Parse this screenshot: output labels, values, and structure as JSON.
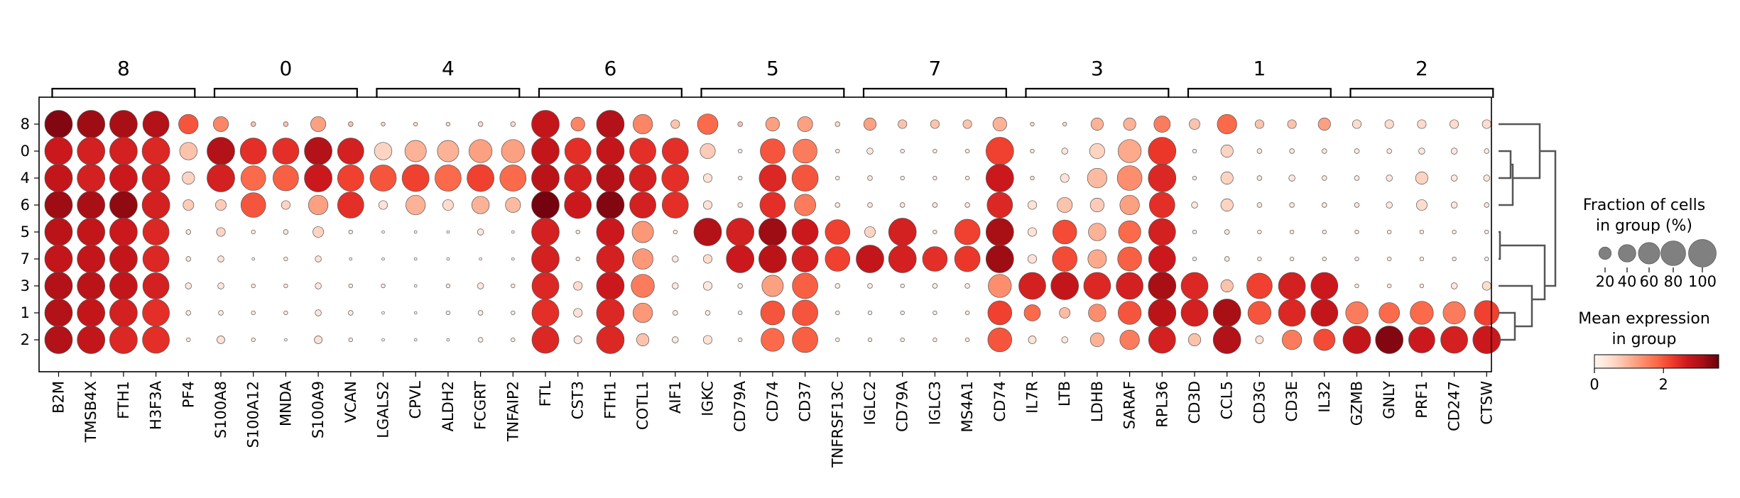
{
  "chart_data": {
    "type": "dotplot",
    "rows": [
      "8",
      "0",
      "4",
      "6",
      "5",
      "7",
      "3",
      "1",
      "2"
    ],
    "groups": [
      {
        "label": "8",
        "genes": [
          "B2M",
          "TMSB4X",
          "FTH1",
          "H3F3A",
          "PF4"
        ]
      },
      {
        "label": "0",
        "genes": [
          "S100A8",
          "S100A12",
          "MNDA",
          "S100A9",
          "VCAN"
        ]
      },
      {
        "label": "4",
        "genes": [
          "LGALS2",
          "CPVL",
          "ALDH2",
          "FCGRT",
          "TNFAIP2"
        ]
      },
      {
        "label": "6",
        "genes": [
          "FTL",
          "CST3",
          "FTH1",
          "COTL1",
          "AIF1"
        ]
      },
      {
        "label": "5",
        "genes": [
          "IGKC",
          "CD79A",
          "CD74",
          "CD37",
          "TNFRSF13C"
        ]
      },
      {
        "label": "7",
        "genes": [
          "IGLC2",
          "CD79A",
          "IGLC3",
          "MS4A1",
          "CD74"
        ]
      },
      {
        "label": "3",
        "genes": [
          "IL7R",
          "LTB",
          "LDHB",
          "SARAF",
          "RPL36"
        ]
      },
      {
        "label": "1",
        "genes": [
          "CD3D",
          "CCL5",
          "CD3G",
          "CD3E",
          "IL32"
        ]
      },
      {
        "label": "2",
        "genes": [
          "GZMB",
          "GNLY",
          "PRF1",
          "CD247",
          "CTSW"
        ]
      }
    ],
    "fraction_pct": [
      [
        100,
        100,
        100,
        90,
        50,
        30,
        3,
        3,
        30,
        3,
        2,
        2,
        2,
        3,
        3,
        100,
        25,
        100,
        50,
        10,
        55,
        3,
        25,
        30,
        3,
        20,
        10,
        10,
        10,
        25,
        2,
        2,
        20,
        20,
        35,
        15,
        50,
        10,
        10,
        20,
        10,
        10,
        10,
        10,
        10
      ],
      [
        100,
        100,
        100,
        100,
        40,
        100,
        90,
        90,
        100,
        90,
        40,
        60,
        60,
        70,
        70,
        100,
        90,
        100,
        90,
        90,
        30,
        2,
        80,
        75,
        2,
        5,
        2,
        2,
        2,
        100,
        2,
        5,
        30,
        70,
        100,
        2,
        20,
        3,
        3,
        3,
        3,
        3,
        5,
        5,
        3
      ],
      [
        100,
        100,
        100,
        100,
        20,
        100,
        80,
        85,
        100,
        90,
        90,
        95,
        90,
        95,
        90,
        100,
        95,
        100,
        95,
        95,
        10,
        2,
        95,
        90,
        2,
        3,
        2,
        2,
        2,
        100,
        2,
        10,
        50,
        80,
        100,
        2,
        20,
        3,
        5,
        3,
        3,
        5,
        20,
        5,
        5
      ],
      [
        100,
        100,
        100,
        100,
        15,
        15,
        80,
        10,
        50,
        90,
        10,
        50,
        15,
        40,
        30,
        100,
        95,
        100,
        90,
        90,
        10,
        3,
        85,
        60,
        3,
        3,
        3,
        3,
        3,
        85,
        10,
        30,
        25,
        50,
        85,
        5,
        20,
        3,
        3,
        3,
        3,
        5,
        15,
        5,
        3
      ],
      [
        100,
        100,
        100,
        90,
        3,
        10,
        2,
        3,
        15,
        2,
        1,
        1,
        1,
        5,
        1,
        100,
        2,
        100,
        60,
        2,
        100,
        100,
        100,
        90,
        80,
        15,
        100,
        2,
        85,
        100,
        10,
        75,
        40,
        65,
        95,
        2,
        3,
        2,
        2,
        2,
        2,
        2,
        2,
        2,
        2
      ],
      [
        100,
        100,
        100,
        90,
        3,
        5,
        1,
        2,
        5,
        1,
        1,
        1,
        1,
        1,
        1,
        100,
        2,
        100,
        55,
        5,
        10,
        100,
        100,
        90,
        80,
        100,
        100,
        80,
        85,
        100,
        10,
        80,
        45,
        75,
        95,
        2,
        3,
        2,
        2,
        2,
        2,
        2,
        2,
        2,
        2
      ],
      [
        100,
        100,
        100,
        90,
        5,
        5,
        2,
        2,
        5,
        2,
        2,
        1,
        2,
        5,
        2,
        95,
        10,
        100,
        70,
        5,
        10,
        3,
        60,
        85,
        3,
        3,
        2,
        3,
        3,
        70,
        95,
        100,
        95,
        95,
        100,
        95,
        20,
        85,
        95,
        95,
        2,
        2,
        2,
        5,
        10
      ],
      [
        100,
        100,
        100,
        95,
        3,
        3,
        2,
        2,
        5,
        3,
        1,
        1,
        2,
        3,
        2,
        95,
        10,
        100,
        50,
        3,
        3,
        2,
        75,
        85,
        2,
        2,
        2,
        2,
        2,
        75,
        35,
        15,
        40,
        70,
        100,
        95,
        100,
        70,
        95,
        95,
        65,
        55,
        70,
        65,
        80
      ],
      [
        100,
        100,
        100,
        95,
        2,
        8,
        2,
        1,
        8,
        2,
        1,
        1,
        1,
        3,
        2,
        95,
        8,
        100,
        20,
        5,
        10,
        2,
        70,
        85,
        2,
        2,
        2,
        2,
        2,
        75,
        8,
        5,
        25,
        50,
        95,
        20,
        100,
        8,
        50,
        60,
        100,
        100,
        90,
        95,
        100
      ]
    ],
    "mean_expression": [
      [
        3.4,
        3.2,
        3.1,
        3.0,
        2.0,
        1.5,
        0.8,
        0.8,
        1.2,
        0.8,
        0.5,
        0.5,
        0.5,
        0.5,
        0.5,
        2.8,
        1.5,
        3.0,
        1.5,
        0.8,
        1.8,
        0.8,
        1.2,
        1.2,
        0.5,
        1.2,
        0.8,
        0.8,
        0.8,
        1.0,
        0.5,
        0.5,
        1.0,
        1.0,
        1.6,
        0.8,
        1.8,
        0.8,
        0.8,
        1.2,
        0.5,
        0.5,
        0.5,
        0.5,
        0.5
      ],
      [
        2.7,
        2.6,
        2.6,
        2.5,
        0.8,
        3.0,
        2.4,
        2.4,
        3.0,
        2.6,
        0.6,
        1.0,
        1.0,
        1.2,
        1.2,
        2.8,
        2.4,
        2.8,
        2.4,
        2.4,
        0.7,
        0.2,
        2.0,
        1.6,
        0.2,
        0.3,
        0.2,
        0.2,
        0.2,
        2.2,
        0.3,
        0.3,
        0.6,
        1.1,
        2.3,
        0.2,
        0.6,
        0.3,
        0.3,
        0.3,
        0.2,
        0.2,
        0.3,
        0.3,
        0.2
      ],
      [
        2.8,
        2.6,
        2.7,
        2.6,
        0.6,
        2.6,
        1.8,
        1.9,
        2.7,
        2.2,
        2.0,
        2.2,
        1.8,
        2.2,
        1.8,
        2.9,
        2.6,
        3.0,
        2.6,
        2.4,
        0.4,
        0.2,
        2.5,
        2.0,
        0.2,
        0.3,
        0.2,
        0.2,
        0.2,
        2.7,
        0.3,
        0.4,
        0.9,
        1.4,
        2.5,
        0.2,
        0.6,
        0.3,
        0.3,
        0.3,
        0.2,
        0.3,
        0.6,
        0.3,
        0.3
      ],
      [
        3.2,
        3.1,
        3.3,
        2.6,
        0.7,
        0.7,
        2.0,
        0.6,
        1.2,
        2.4,
        0.4,
        1.0,
        0.5,
        1.0,
        0.9,
        3.5,
        2.7,
        3.4,
        2.6,
        2.4,
        0.4,
        0.3,
        2.4,
        1.6,
        0.3,
        0.3,
        0.3,
        0.3,
        0.3,
        2.5,
        0.4,
        0.8,
        0.7,
        1.2,
        2.4,
        0.3,
        0.6,
        0.3,
        0.3,
        0.3,
        0.3,
        0.3,
        0.5,
        0.3,
        0.3
      ],
      [
        2.9,
        2.8,
        2.7,
        2.5,
        0.3,
        0.6,
        0.2,
        0.3,
        0.6,
        0.2,
        0.2,
        0.2,
        0.2,
        0.3,
        0.2,
        2.6,
        0.3,
        2.7,
        1.3,
        0.2,
        3.0,
        2.6,
        3.2,
        2.7,
        2.2,
        0.6,
        2.6,
        0.3,
        2.2,
        3.1,
        0.4,
        2.1,
        1.0,
        1.8,
        2.6,
        0.2,
        0.3,
        0.2,
        0.2,
        0.2,
        0.2,
        0.2,
        0.2,
        0.2,
        0.2
      ],
      [
        2.8,
        2.8,
        2.8,
        2.5,
        0.3,
        0.4,
        0.2,
        0.2,
        0.4,
        0.2,
        0.2,
        0.2,
        0.2,
        0.2,
        0.2,
        2.6,
        0.3,
        2.6,
        1.3,
        0.3,
        0.5,
        2.7,
        2.9,
        2.6,
        2.2,
        2.8,
        2.6,
        2.4,
        2.3,
        3.2,
        0.4,
        2.1,
        1.1,
        1.9,
        2.7,
        0.2,
        0.3,
        0.2,
        0.2,
        0.2,
        0.2,
        0.2,
        0.2,
        0.2,
        0.2
      ],
      [
        3.0,
        2.9,
        2.8,
        2.6,
        0.3,
        0.3,
        0.2,
        0.2,
        0.3,
        0.2,
        0.2,
        0.2,
        0.2,
        0.3,
        0.2,
        2.5,
        0.5,
        2.7,
        1.6,
        0.3,
        0.3,
        0.2,
        1.2,
        1.9,
        0.2,
        0.2,
        0.2,
        0.2,
        0.2,
        1.4,
        2.6,
        2.8,
        2.5,
        2.6,
        3.1,
        2.5,
        0.8,
        2.2,
        2.6,
        2.7,
        0.2,
        0.2,
        0.2,
        0.3,
        0.5
      ],
      [
        3.0,
        2.8,
        2.6,
        2.4,
        0.2,
        0.2,
        0.2,
        0.2,
        0.3,
        0.2,
        0.2,
        0.2,
        0.2,
        0.2,
        0.2,
        2.4,
        0.4,
        2.5,
        1.3,
        0.2,
        0.2,
        0.2,
        2.0,
        2.0,
        0.2,
        0.2,
        0.2,
        0.2,
        0.2,
        2.2,
        1.8,
        0.9,
        1.4,
        2.0,
        2.9,
        2.6,
        3.1,
        2.0,
        2.5,
        2.8,
        1.6,
        1.8,
        1.8,
        1.6,
        2.2
      ],
      [
        3.0,
        2.8,
        2.5,
        2.4,
        0.2,
        0.4,
        0.2,
        0.2,
        0.4,
        0.2,
        0.2,
        0.2,
        0.2,
        0.2,
        0.2,
        2.5,
        0.3,
        2.5,
        0.8,
        0.3,
        0.4,
        0.2,
        1.8,
        1.9,
        0.2,
        0.2,
        0.2,
        0.2,
        0.2,
        2.0,
        0.4,
        0.3,
        1.0,
        1.6,
        2.6,
        0.8,
        3.0,
        0.4,
        1.6,
        2.1,
        2.8,
        3.4,
        2.7,
        2.6,
        2.7
      ]
    ],
    "size_legend": {
      "title_line1": "Fraction of cells",
      "title_line2": "in group (%)",
      "ticks": [
        "20",
        "40",
        "60",
        "80",
        "100"
      ],
      "values": [
        20,
        40,
        60,
        80,
        100
      ]
    },
    "color_legend": {
      "title_line1": "Mean expression",
      "title_line2": "in group",
      "ticks": [
        "0",
        "2"
      ],
      "tick_values": [
        0,
        2
      ],
      "range": [
        0,
        3.6
      ]
    },
    "colormap": "Reds",
    "dendrogram": true
  }
}
